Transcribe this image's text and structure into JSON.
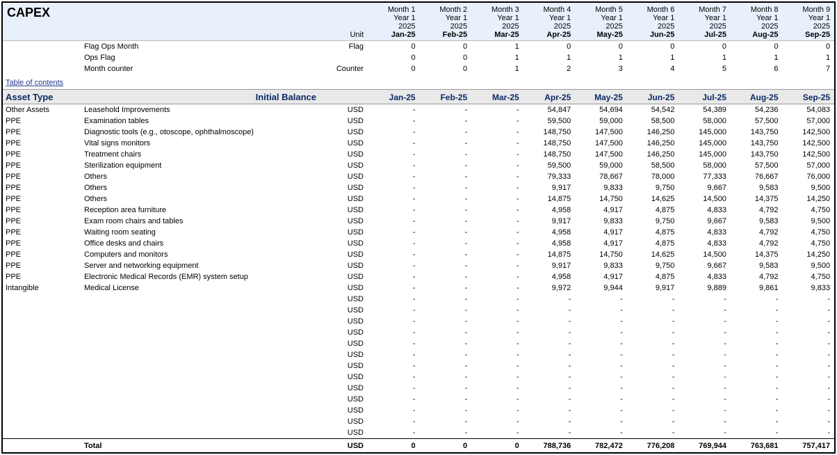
{
  "header": {
    "title": "CAPEX",
    "unit_label": "Unit",
    "months": [
      {
        "idx": "Month 1",
        "year": "Year 1",
        "y": "2025",
        "lbl": "Jan-25"
      },
      {
        "idx": "Month 2",
        "year": "Year 1",
        "y": "2025",
        "lbl": "Feb-25"
      },
      {
        "idx": "Month 3",
        "year": "Year 1",
        "y": "2025",
        "lbl": "Mar-25"
      },
      {
        "idx": "Month 4",
        "year": "Year 1",
        "y": "2025",
        "lbl": "Apr-25"
      },
      {
        "idx": "Month 5",
        "year": "Year 1",
        "y": "2025",
        "lbl": "May-25"
      },
      {
        "idx": "Month 6",
        "year": "Year 1",
        "y": "2025",
        "lbl": "Jun-25"
      },
      {
        "idx": "Month 7",
        "year": "Year 1",
        "y": "2025",
        "lbl": "Jul-25"
      },
      {
        "idx": "Month 8",
        "year": "Year 1",
        "y": "2025",
        "lbl": "Aug-25"
      },
      {
        "idx": "Month 9",
        "year": "Year 1",
        "y": "2025",
        "lbl": "Sep-25"
      }
    ]
  },
  "flags": [
    {
      "label": "Flag Ops Month",
      "unit": "Flag",
      "vals": [
        "0",
        "0",
        "1",
        "0",
        "0",
        "0",
        "0",
        "0",
        "0"
      ]
    },
    {
      "label": "Ops Flag",
      "unit": "",
      "vals": [
        "0",
        "0",
        "1",
        "1",
        "1",
        "1",
        "1",
        "1",
        "1"
      ]
    },
    {
      "label": "Month counter",
      "unit": "Counter",
      "vals": [
        "0",
        "0",
        "1",
        "2",
        "3",
        "4",
        "5",
        "6",
        "7"
      ]
    }
  ],
  "toc": "Table of contents",
  "section": {
    "type_hdr": "Asset Type",
    "ib_hdr": "Initial Balance",
    "month_hdrs": [
      "Jan-25",
      "Feb-25",
      "Mar-25",
      "Apr-25",
      "May-25",
      "Jun-25",
      "Jul-25",
      "Aug-25",
      "Sep-25"
    ]
  },
  "rows": [
    {
      "t": "Other Assets",
      "d": "Leasehold Improvements",
      "u": "USD",
      "v": [
        "-",
        "-",
        "-",
        "54,847",
        "54,694",
        "54,542",
        "54,389",
        "54,236",
        "54,083"
      ]
    },
    {
      "t": "PPE",
      "d": "Examination tables",
      "u": "USD",
      "v": [
        "-",
        "-",
        "-",
        "59,500",
        "59,000",
        "58,500",
        "58,000",
        "57,500",
        "57,000"
      ]
    },
    {
      "t": "PPE",
      "d": "Diagnostic tools (e.g., otoscope, ophthalmoscope)",
      "u": "USD",
      "v": [
        "-",
        "-",
        "-",
        "148,750",
        "147,500",
        "146,250",
        "145,000",
        "143,750",
        "142,500"
      ]
    },
    {
      "t": "PPE",
      "d": "Vital signs monitors",
      "u": "USD",
      "v": [
        "-",
        "-",
        "-",
        "148,750",
        "147,500",
        "146,250",
        "145,000",
        "143,750",
        "142,500"
      ]
    },
    {
      "t": "PPE",
      "d": "Treatment chairs",
      "u": "USD",
      "v": [
        "-",
        "-",
        "-",
        "148,750",
        "147,500",
        "146,250",
        "145,000",
        "143,750",
        "142,500"
      ]
    },
    {
      "t": "PPE",
      "d": "Sterilization equipment",
      "u": "USD",
      "v": [
        "-",
        "-",
        "-",
        "59,500",
        "59,000",
        "58,500",
        "58,000",
        "57,500",
        "57,000"
      ]
    },
    {
      "t": "PPE",
      "d": "Others",
      "u": "USD",
      "v": [
        "-",
        "-",
        "-",
        "79,333",
        "78,667",
        "78,000",
        "77,333",
        "76,667",
        "76,000"
      ]
    },
    {
      "t": "PPE",
      "d": "Others",
      "u": "USD",
      "v": [
        "-",
        "-",
        "-",
        "9,917",
        "9,833",
        "9,750",
        "9,667",
        "9,583",
        "9,500"
      ]
    },
    {
      "t": "PPE",
      "d": "Others",
      "u": "USD",
      "v": [
        "-",
        "-",
        "-",
        "14,875",
        "14,750",
        "14,625",
        "14,500",
        "14,375",
        "14,250"
      ]
    },
    {
      "t": "PPE",
      "d": "Reception area furniture",
      "u": "USD",
      "v": [
        "-",
        "-",
        "-",
        "4,958",
        "4,917",
        "4,875",
        "4,833",
        "4,792",
        "4,750"
      ]
    },
    {
      "t": "PPE",
      "d": "Exam room chairs and tables",
      "u": "USD",
      "v": [
        "-",
        "-",
        "-",
        "9,917",
        "9,833",
        "9,750",
        "9,667",
        "9,583",
        "9,500"
      ]
    },
    {
      "t": "PPE",
      "d": "Waiting room seating",
      "u": "USD",
      "v": [
        "-",
        "-",
        "-",
        "4,958",
        "4,917",
        "4,875",
        "4,833",
        "4,792",
        "4,750"
      ]
    },
    {
      "t": "PPE",
      "d": "Office desks and chairs",
      "u": "USD",
      "v": [
        "-",
        "-",
        "-",
        "4,958",
        "4,917",
        "4,875",
        "4,833",
        "4,792",
        "4,750"
      ]
    },
    {
      "t": "PPE",
      "d": "Computers and monitors",
      "u": "USD",
      "v": [
        "-",
        "-",
        "-",
        "14,875",
        "14,750",
        "14,625",
        "14,500",
        "14,375",
        "14,250"
      ]
    },
    {
      "t": "PPE",
      "d": "Server and networking equipment",
      "u": "USD",
      "v": [
        "-",
        "-",
        "-",
        "9,917",
        "9,833",
        "9,750",
        "9,667",
        "9,583",
        "9,500"
      ]
    },
    {
      "t": "PPE",
      "d": "Electronic Medical Records (EMR) system setup",
      "u": "USD",
      "v": [
        "-",
        "-",
        "-",
        "4,958",
        "4,917",
        "4,875",
        "4,833",
        "4,792",
        "4,750"
      ]
    },
    {
      "t": "Intangible",
      "d": "Medical License",
      "u": "USD",
      "v": [
        "-",
        "-",
        "-",
        "9,972",
        "9,944",
        "9,917",
        "9,889",
        "9,861",
        "9,833"
      ]
    },
    {
      "t": "",
      "d": "",
      "u": "USD",
      "v": [
        "-",
        "-",
        "-",
        "-",
        "-",
        "-",
        "-",
        "-",
        "-"
      ]
    },
    {
      "t": "",
      "d": "",
      "u": "USD",
      "v": [
        "-",
        "-",
        "-",
        "-",
        "-",
        "-",
        "-",
        "-",
        "-"
      ]
    },
    {
      "t": "",
      "d": "",
      "u": "USD",
      "v": [
        "-",
        "-",
        "-",
        "-",
        "-",
        "-",
        "-",
        "-",
        "-"
      ]
    },
    {
      "t": "",
      "d": "",
      "u": "USD",
      "v": [
        "-",
        "-",
        "-",
        "-",
        "-",
        "-",
        "-",
        "-",
        "-"
      ]
    },
    {
      "t": "",
      "d": "",
      "u": "USD",
      "v": [
        "-",
        "-",
        "-",
        "-",
        "-",
        "-",
        "-",
        "-",
        "-"
      ]
    },
    {
      "t": "",
      "d": "",
      "u": "USD",
      "v": [
        "-",
        "-",
        "-",
        "-",
        "-",
        "-",
        "-",
        "-",
        "-"
      ]
    },
    {
      "t": "",
      "d": "",
      "u": "USD",
      "v": [
        "-",
        "-",
        "-",
        "-",
        "-",
        "-",
        "-",
        "-",
        "-"
      ]
    },
    {
      "t": "",
      "d": "",
      "u": "USD",
      "v": [
        "-",
        "-",
        "-",
        "-",
        "-",
        "-",
        "-",
        "-",
        "-"
      ]
    },
    {
      "t": "",
      "d": "",
      "u": "USD",
      "v": [
        "-",
        "-",
        "-",
        "-",
        "-",
        "-",
        "-",
        "-",
        "-"
      ]
    },
    {
      "t": "",
      "d": "",
      "u": "USD",
      "v": [
        "-",
        "-",
        "-",
        "-",
        "-",
        "-",
        "-",
        "-",
        "-"
      ]
    },
    {
      "t": "",
      "d": "",
      "u": "USD",
      "v": [
        "-",
        "-",
        "-",
        "-",
        "-",
        "-",
        "-",
        "-",
        "-"
      ]
    },
    {
      "t": "",
      "d": "",
      "u": "USD",
      "v": [
        "-",
        "-",
        "-",
        "-",
        "-",
        "-",
        "-",
        "-",
        "-"
      ]
    },
    {
      "t": "",
      "d": "",
      "u": "USD",
      "v": [
        "-",
        "-",
        "-",
        "-",
        "-",
        "-",
        "-",
        "-",
        "-"
      ]
    }
  ],
  "total": {
    "label": "Total",
    "unit": "USD",
    "v": [
      "0",
      "0",
      "0",
      "788,736",
      "782,472",
      "776,208",
      "769,944",
      "763,681",
      "757,417"
    ]
  }
}
